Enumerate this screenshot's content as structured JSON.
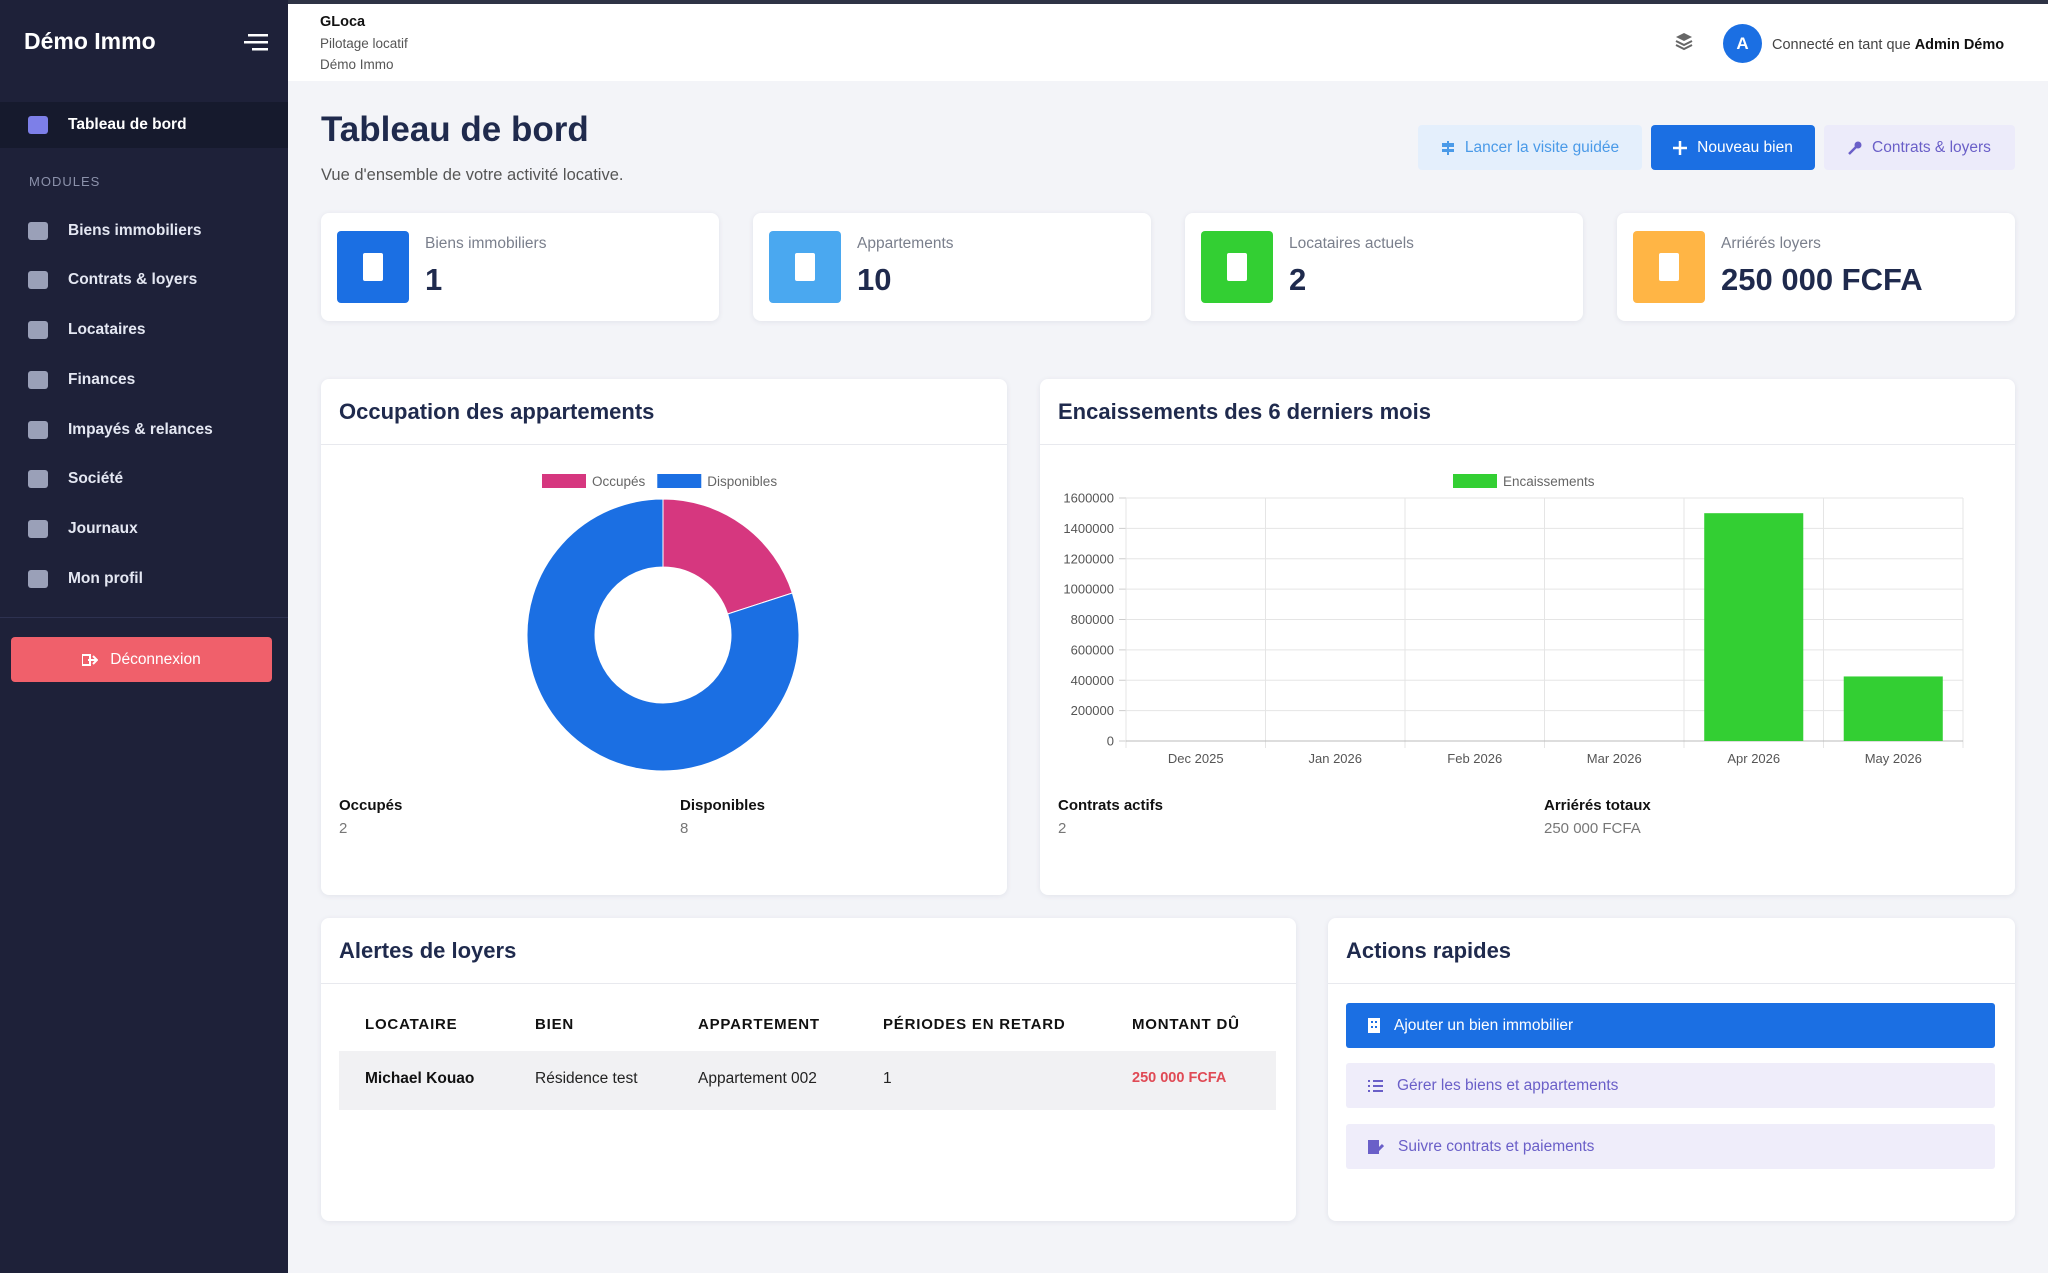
{
  "sidebar": {
    "brand": "Démo Immo",
    "active": "Tableau de bord",
    "section": "MODULES",
    "items": [
      "Biens immobiliers",
      "Contrats & loyers",
      "Locataires",
      "Finances",
      "Impayés & relances",
      "Société",
      "Journaux",
      "Mon profil"
    ],
    "logout": "Déconnexion"
  },
  "topbar": {
    "app": "GLoca",
    "subtitle": "Pilotage locatif",
    "company": "Démo Immo",
    "avatar": "A",
    "connected_prefix": "Connecté en tant que",
    "user": "Admin Démo"
  },
  "header": {
    "title": "Tableau de bord",
    "subtitle": "Vue d'ensemble de votre activité locative.",
    "buttons": [
      "Lancer la visite guidée",
      "Nouveau bien",
      "Contrats & loyers"
    ]
  },
  "stats": [
    {
      "label": "Biens immobiliers",
      "value": 1
    },
    {
      "label": "Appartements",
      "value": 10
    },
    {
      "label": "Locataires actuels",
      "value": 2
    },
    {
      "label": "Arriérés loyers",
      "value": "250 000 FCFA"
    }
  ],
  "chart_data": [
    {
      "type": "pie",
      "title": "Occupation des appartements",
      "donut": true,
      "categories": [
        "Occupés",
        "Disponibles"
      ],
      "values": [
        2,
        8
      ],
      "colors": [
        "#d6377f",
        "#1b6fe3"
      ],
      "legend": "top"
    },
    {
      "type": "bar",
      "title": "Encaissements des 6 derniers mois",
      "categories": [
        "Dec 2025",
        "Jan 2026",
        "Feb 2026",
        "Mar 2026",
        "Apr 2026",
        "May 2026"
      ],
      "series": [
        {
          "name": "Encaissements",
          "color": "#33cf33",
          "values": [
            0,
            0,
            0,
            0,
            1500000,
            425000
          ]
        }
      ],
      "ylim": [
        0,
        1600000
      ],
      "yticks": [
        0,
        200000,
        400000,
        600000,
        800000,
        1000000,
        1200000,
        1400000,
        1600000
      ],
      "grid": true,
      "legend": "top"
    }
  ],
  "occupation_summary": [
    {
      "label": "Occupés",
      "value": 2
    },
    {
      "label": "Disponibles",
      "value": 8
    }
  ],
  "payments_summary": [
    {
      "label": "Contrats actifs",
      "value": 2
    },
    {
      "label": "Arriérés totaux",
      "value": "250 000 FCFA"
    }
  ],
  "alerts": {
    "title": "Alertes de loyers",
    "columns": [
      "LOCATAIRE",
      "BIEN",
      "APPARTEMENT",
      "PÉRIODES EN RETARD",
      "MONTANT DÛ"
    ],
    "rows": [
      [
        "Michael Kouao",
        "Résidence test",
        "Appartement 002",
        1,
        "250 000 FCFA"
      ]
    ]
  },
  "actions": {
    "title": "Actions rapides",
    "items": [
      "Ajouter un bien immobilier",
      "Gérer les biens et appartements",
      "Suivre contrats et paiements"
    ]
  }
}
